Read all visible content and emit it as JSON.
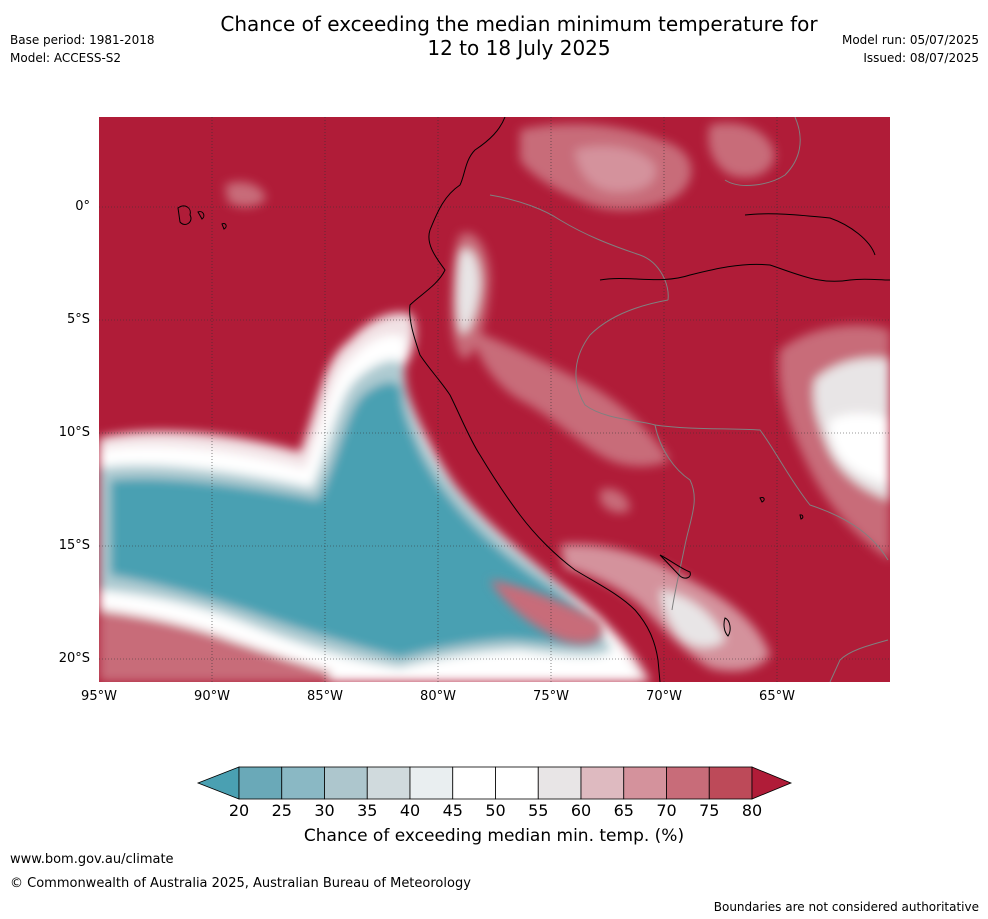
{
  "header": {
    "title_line1": "Chance of exceeding the median minimum temperature for",
    "title_line2": "12 to 18 July 2025",
    "base_period": "Base period: 1981-2018",
    "model": "Model: ACCESS-S2",
    "model_run": "Model run: 05/07/2025",
    "issued": "Issued: 08/07/2025"
  },
  "map": {
    "lat_labels": [
      "0°",
      "5°S",
      "10°S",
      "15°S",
      "20°S"
    ],
    "lon_labels": [
      "95°W",
      "90°W",
      "85°W",
      "80°W",
      "75°W",
      "70°W",
      "65°W"
    ],
    "colors": {
      "high": "#b01c38",
      "low": "#4aa0b2",
      "neutral": "#ffffff",
      "coast": "#000000",
      "border": "#808080",
      "grid": "#333333"
    }
  },
  "colorbar": {
    "ticks": [
      "20",
      "25",
      "30",
      "35",
      "40",
      "45",
      "50",
      "55",
      "60",
      "65",
      "70",
      "75",
      "80"
    ],
    "colors": [
      "#6aa9b8",
      "#8ab8c4",
      "#adc6cd",
      "#d0dadd",
      "#e9eef0",
      "#ffffff",
      "#ffffff",
      "#e8e5e6",
      "#debac0",
      "#d4929c",
      "#c86c79",
      "#bd4a59"
    ],
    "low_color": "#4aa0b2",
    "high_color": "#b01c38",
    "label": "Chance of exceeding median min. temp. (%)"
  },
  "footer": {
    "url": "www.bom.gov.au/climate",
    "copyright": "© Commonwealth of Australia 2025, Australian Bureau of Meteorology",
    "disclaimer": "Boundaries are not considered authoritative"
  }
}
